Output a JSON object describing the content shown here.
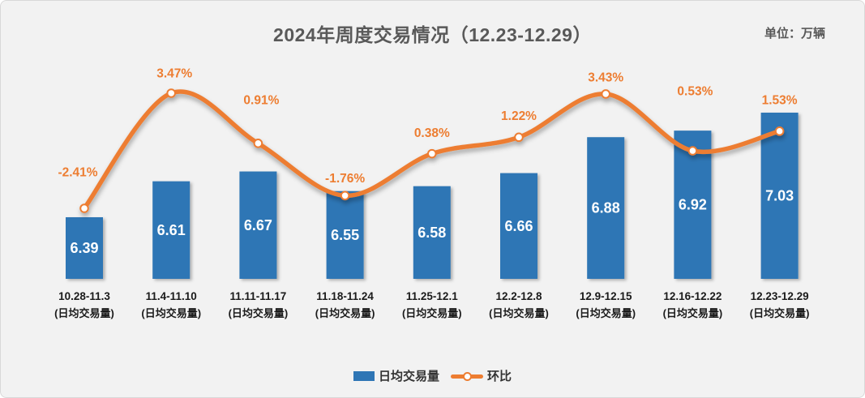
{
  "chart": {
    "title": "2024年周度交易情况（12.23-12.29）",
    "unit_label": "单位：万辆",
    "legend": [
      {
        "label": "日均交易量",
        "type": "bar"
      },
      {
        "label": "环比",
        "type": "line"
      }
    ]
  },
  "chart_data": {
    "type": "bar+line",
    "title": "2024年周度交易情况（12.23-12.29）",
    "unit": "万辆",
    "categories": [
      "10.28-11.3",
      "11.4-11.10",
      "11.11-11.17",
      "11.18-11.24",
      "11.25-12.1",
      "12.2-12.8",
      "12.9-12.15",
      "12.16-12.22",
      "12.23-12.29"
    ],
    "category_sublabel": "(日均交易量)",
    "series": [
      {
        "name": "日均交易量",
        "type": "bar",
        "values": [
          6.39,
          6.61,
          6.67,
          6.55,
          6.58,
          6.66,
          6.88,
          6.92,
          7.03
        ]
      },
      {
        "name": "环比",
        "type": "line",
        "values_pct": [
          -2.41,
          3.47,
          0.91,
          -1.76,
          0.38,
          1.22,
          3.43,
          0.53,
          1.53
        ]
      }
    ],
    "grid": false,
    "value_axis_visible": false,
    "legend_position": "bottom"
  },
  "colors": {
    "bar_blue": "#2F76B5",
    "line_orange": "#ED7D31",
    "bar_value_text": "#ffffff",
    "pct_label_text": "#ED7D31",
    "axis_line": "#7f7f7f",
    "x_label_text": "#1a1a1a",
    "title_text": "#595959",
    "background": "#f2f2f2"
  }
}
